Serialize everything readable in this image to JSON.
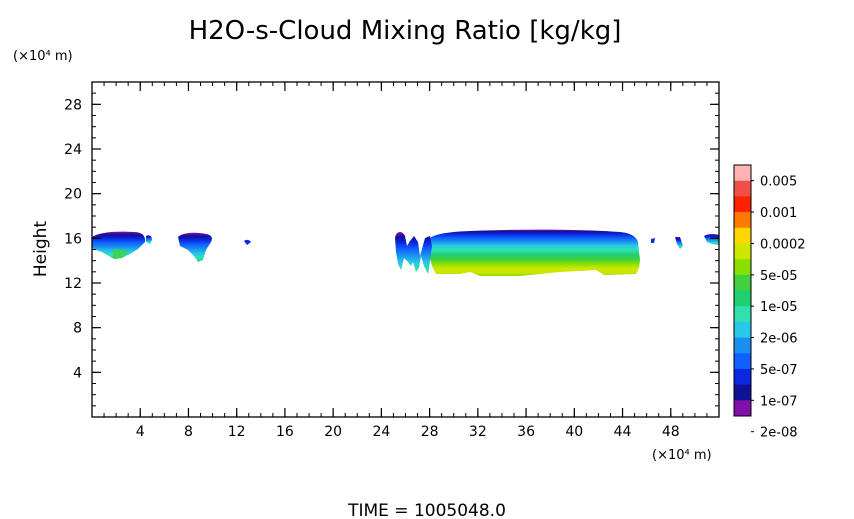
{
  "chart_data": {
    "type": "heatmap",
    "title": "H2O-s-Cloud Mixing Ratio [kg/kg]",
    "xlabel": "",
    "ylabel": "Height",
    "x_unit": "(×10⁴ m)",
    "y_unit": "(×10⁴ m)",
    "xlim": [
      0,
      52
    ],
    "ylim": [
      0,
      30
    ],
    "x_ticks": [
      4,
      8,
      12,
      16,
      20,
      24,
      28,
      32,
      36,
      40,
      44,
      48
    ],
    "y_ticks": [
      4,
      8,
      12,
      16,
      20,
      24,
      28
    ],
    "colorbar": {
      "labels": [
        "0.005",
        "0.001",
        "0.0002",
        "5e-05",
        "1e-05",
        "2e-06",
        "5e-07",
        "1e-07",
        "2e-08"
      ],
      "colors": [
        "#ffb4b4",
        "#f0504a",
        "#ff2200",
        "#ff7a00",
        "#ffd700",
        "#cfe600",
        "#88e000",
        "#40d040",
        "#20d070",
        "#30e0b0",
        "#28c8e8",
        "#1890f0",
        "#1060ff",
        "#0a28e0",
        "#101098",
        "#8010a8"
      ]
    },
    "footer": "TIME = 1005048.0"
  }
}
